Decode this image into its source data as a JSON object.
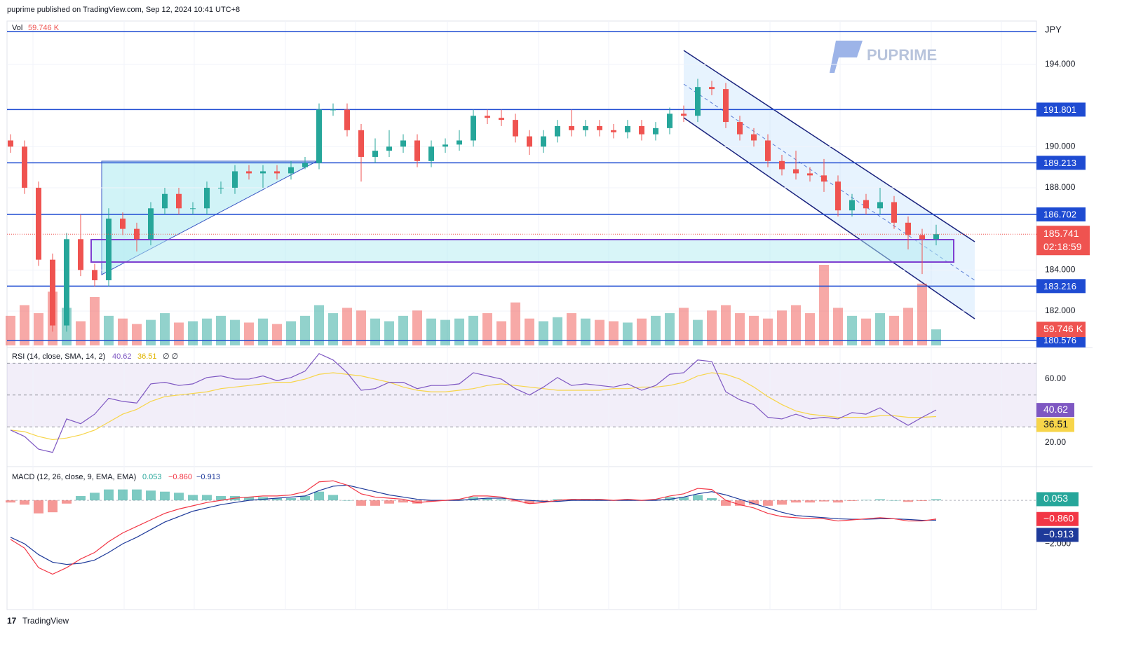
{
  "header": {
    "publisher": "puprime published on TradingView.com, Sep 12, 2024 10:41 UTC+8",
    "currency": "JPY",
    "brand": "PUPRIME",
    "footer": "TradingView"
  },
  "chart_data": {
    "type": "candlestick",
    "bull_color": "#26a69a",
    "bear_color": "#ef5350",
    "level_color": "#1e4bd2",
    "open": [
      190.3,
      190.0,
      188.0,
      184.5,
      181.3,
      185.5,
      184.0,
      183.5,
      186.5,
      186.0,
      185.5,
      187.0,
      187.7,
      187.0,
      187.0,
      188.0,
      188.0,
      188.8,
      188.7,
      188.8,
      188.7,
      189.0,
      189.2,
      191.8,
      191.8,
      190.8,
      189.5,
      189.8,
      190.0,
      190.3,
      189.3,
      190.0,
      190.1,
      190.3,
      191.5,
      191.4,
      191.3,
      190.5,
      190.0,
      190.5,
      191.0,
      190.8,
      191.0,
      190.8,
      190.7,
      191.0,
      190.6,
      190.9,
      191.6,
      191.5,
      192.9,
      192.8,
      191.2,
      190.6,
      190.3,
      189.3,
      188.9,
      188.7,
      188.6,
      188.3,
      186.9,
      187.4,
      187.0,
      187.3,
      186.3,
      185.7,
      185.5
    ],
    "high": [
      190.6,
      190.3,
      188.3,
      184.8,
      185.8,
      186.7,
      184.3,
      187.0,
      186.8,
      186.3,
      187.3,
      188.0,
      188.0,
      187.3,
      188.3,
      188.3,
      189.1,
      189.1,
      189.1,
      189.1,
      189.3,
      189.5,
      192.1,
      192.1,
      192.1,
      191.1,
      190.4,
      190.8,
      190.6,
      190.6,
      190.3,
      190.4,
      190.8,
      191.8,
      191.8,
      191.8,
      191.6,
      190.8,
      190.8,
      191.3,
      191.8,
      191.3,
      191.3,
      191.1,
      191.3,
      191.3,
      191.2,
      191.9,
      192.0,
      193.3,
      193.2,
      193.1,
      191.5,
      190.9,
      190.6,
      189.6,
      189.8,
      189.0,
      189.4,
      188.6,
      187.7,
      187.7,
      188.0,
      187.6,
      186.6,
      186.0,
      186.2
    ],
    "low": [
      189.7,
      187.7,
      184.2,
      181.0,
      181.0,
      183.7,
      183.2,
      183.2,
      185.7,
      184.9,
      185.2,
      186.7,
      186.7,
      186.7,
      186.7,
      187.7,
      187.7,
      188.4,
      188.0,
      188.4,
      188.4,
      188.9,
      188.9,
      191.5,
      190.5,
      188.3,
      189.2,
      189.5,
      189.7,
      189.0,
      189.0,
      189.7,
      189.8,
      190.0,
      191.1,
      191.0,
      190.2,
      189.6,
      189.7,
      190.2,
      190.5,
      190.5,
      190.5,
      190.4,
      190.4,
      190.3,
      190.3,
      190.6,
      191.2,
      191.2,
      192.5,
      190.9,
      190.3,
      190.0,
      189.0,
      188.6,
      188.4,
      188.3,
      187.8,
      186.6,
      186.6,
      186.7,
      186.7,
      186.0,
      185.0,
      183.8,
      185.2
    ],
    "close": [
      190.0,
      188.0,
      184.5,
      181.3,
      185.5,
      184.0,
      183.5,
      186.5,
      186.0,
      185.5,
      187.0,
      187.7,
      187.0,
      187.0,
      188.0,
      188.0,
      188.8,
      188.7,
      188.8,
      188.7,
      189.0,
      189.2,
      191.8,
      191.8,
      190.8,
      189.5,
      189.8,
      190.0,
      190.3,
      189.3,
      190.0,
      190.1,
      190.3,
      191.5,
      191.4,
      191.3,
      190.5,
      190.0,
      190.5,
      191.0,
      190.8,
      191.0,
      190.8,
      190.7,
      191.0,
      190.6,
      190.9,
      191.6,
      191.5,
      192.9,
      192.8,
      191.2,
      190.6,
      190.3,
      189.3,
      188.9,
      188.7,
      188.6,
      188.3,
      186.9,
      187.4,
      187.0,
      187.3,
      186.3,
      185.7,
      185.5,
      185.741
    ],
    "ylim": [
      180.33,
      196.11
    ],
    "yticks": [
      {
        "value": 194,
        "label": "194.000"
      },
      {
        "value": 190,
        "label": "190.000"
      },
      {
        "value": 188,
        "label": "188.000"
      },
      {
        "value": 184,
        "label": "184.000"
      },
      {
        "value": 182,
        "label": "182.000"
      }
    ],
    "levels": [
      191.801,
      189.213,
      186.702,
      183.216,
      180.576
    ],
    "countdown": "02:18:59",
    "volume": {
      "name": "Vol",
      "label": "59.746 K",
      "vlim": [
        0,
        300
      ],
      "values": [
        110,
        150,
        120,
        200,
        140,
        90,
        180,
        110,
        100,
        80,
        95,
        120,
        85,
        90,
        100,
        110,
        95,
        85,
        100,
        80,
        90,
        110,
        150,
        120,
        140,
        130,
        100,
        90,
        110,
        130,
        100,
        95,
        100,
        110,
        120,
        90,
        160,
        100,
        90,
        105,
        120,
        100,
        95,
        90,
        85,
        100,
        110,
        120,
        140,
        95,
        130,
        150,
        120,
        110,
        100,
        130,
        150,
        120,
        300,
        140,
        110,
        100,
        120,
        110,
        140,
        230,
        59.746
      ]
    },
    "rsi": {
      "name": "RSI (14, close, SMA, 14, 2)",
      "extra": "∅ ∅",
      "color": "#7e57c2",
      "sma_color": "#f7d54a",
      "ylim": [
        5.5,
        78.5
      ],
      "yticks": [
        {
          "value": 60,
          "label": "60.00"
        },
        {
          "value": 20,
          "label": "20.00"
        }
      ],
      "bands": [
        70,
        50,
        30
      ],
      "values": [
        28,
        24,
        16,
        14,
        35,
        32,
        38,
        48,
        46,
        45,
        57,
        58,
        56,
        57,
        61,
        62,
        60,
        60,
        62,
        59,
        61,
        65,
        76,
        72,
        64,
        53,
        54,
        58,
        58,
        54,
        56,
        56,
        57,
        64,
        62,
        60,
        54,
        50,
        55,
        61,
        56,
        57,
        56,
        55,
        57,
        53,
        56,
        63,
        64,
        72,
        71,
        52,
        47,
        44,
        36,
        35,
        38,
        35,
        36,
        35,
        39,
        38,
        42,
        36,
        31,
        36,
        40.62
      ],
      "sma": [
        28,
        27,
        24,
        22,
        23,
        25,
        28,
        33,
        38,
        41,
        46,
        49,
        50,
        51,
        52,
        54,
        55,
        56,
        57,
        58,
        58,
        60,
        63,
        64,
        63,
        62,
        60,
        58,
        55,
        53,
        52,
        52,
        53,
        54,
        56,
        57,
        56,
        55,
        54,
        53,
        53,
        53,
        53,
        54,
        54,
        55,
        55,
        56,
        58,
        62,
        64,
        63,
        60,
        55,
        49,
        44,
        40,
        38,
        37,
        36,
        36,
        36,
        37,
        37,
        36,
        36,
        36.51
      ]
    },
    "macd": {
      "name": "MACD (12, 26, close, 9, EMA, EMA)",
      "ylim": [
        -5.03,
        1.52
      ],
      "yticks": [
        {
          "value": -2,
          "label": "−2.000"
        }
      ],
      "histogram": [
        -0.1,
        -0.2,
        -0.6,
        -0.55,
        -0.15,
        0.2,
        0.35,
        0.5,
        0.5,
        0.5,
        0.45,
        0.4,
        0.35,
        0.25,
        0.25,
        0.2,
        0.2,
        0.15,
        0.15,
        0.1,
        0.1,
        0.2,
        0.4,
        0.25,
        0.0,
        -0.25,
        -0.25,
        -0.15,
        -0.1,
        -0.15,
        -0.05,
        0.0,
        0.05,
        0.15,
        0.1,
        0.05,
        -0.05,
        -0.15,
        -0.05,
        0.05,
        0.05,
        0.05,
        0.05,
        0.0,
        0.05,
        0.0,
        0.05,
        0.15,
        0.15,
        0.25,
        0.1,
        -0.25,
        -0.25,
        -0.2,
        -0.25,
        -0.2,
        -0.1,
        -0.1,
        -0.05,
        -0.1,
        -0.03,
        0.02,
        0.05,
        0.0,
        -0.07,
        -0.03,
        0.053
      ],
      "macd": {
        "color": "#f23645",
        "last_label": "−0.860",
        "values": [
          -1.8,
          -2.2,
          -3.1,
          -3.4,
          -3.1,
          -2.7,
          -2.4,
          -1.9,
          -1.5,
          -1.2,
          -0.9,
          -0.6,
          -0.4,
          -0.25,
          -0.1,
          0.0,
          0.1,
          0.15,
          0.2,
          0.2,
          0.25,
          0.4,
          0.85,
          0.9,
          0.7,
          0.3,
          0.15,
          0.1,
          0.05,
          -0.1,
          -0.05,
          0.0,
          0.05,
          0.2,
          0.2,
          0.15,
          0.0,
          -0.15,
          -0.1,
          0.0,
          0.05,
          0.05,
          0.05,
          0.0,
          0.05,
          0.0,
          0.05,
          0.2,
          0.3,
          0.55,
          0.5,
          0.0,
          -0.2,
          -0.35,
          -0.6,
          -0.75,
          -0.8,
          -0.85,
          -0.85,
          -0.95,
          -0.9,
          -0.85,
          -0.8,
          -0.85,
          -0.95,
          -0.95,
          -0.86
        ]
      },
      "signal": {
        "color": "#1e3a9a",
        "last_label": "−0.913",
        "values": [
          -1.7,
          -2.0,
          -2.5,
          -2.85,
          -2.95,
          -2.9,
          -2.75,
          -2.4,
          -2.0,
          -1.7,
          -1.35,
          -1.0,
          -0.75,
          -0.5,
          -0.35,
          -0.2,
          -0.1,
          0.0,
          0.05,
          0.1,
          0.15,
          0.2,
          0.45,
          0.65,
          0.7,
          0.55,
          0.4,
          0.25,
          0.15,
          0.05,
          0.0,
          0.0,
          0.0,
          0.05,
          0.1,
          0.1,
          0.05,
          0.0,
          -0.05,
          -0.05,
          0,
          0,
          0,
          0,
          0,
          0,
          0,
          0.05,
          0.15,
          0.3,
          0.4,
          0.25,
          0.05,
          -0.15,
          -0.35,
          -0.55,
          -0.7,
          -0.75,
          -0.8,
          -0.85,
          -0.87,
          -0.87,
          -0.85,
          -0.85,
          -0.88,
          -0.92,
          -0.913
        ]
      }
    }
  }
}
